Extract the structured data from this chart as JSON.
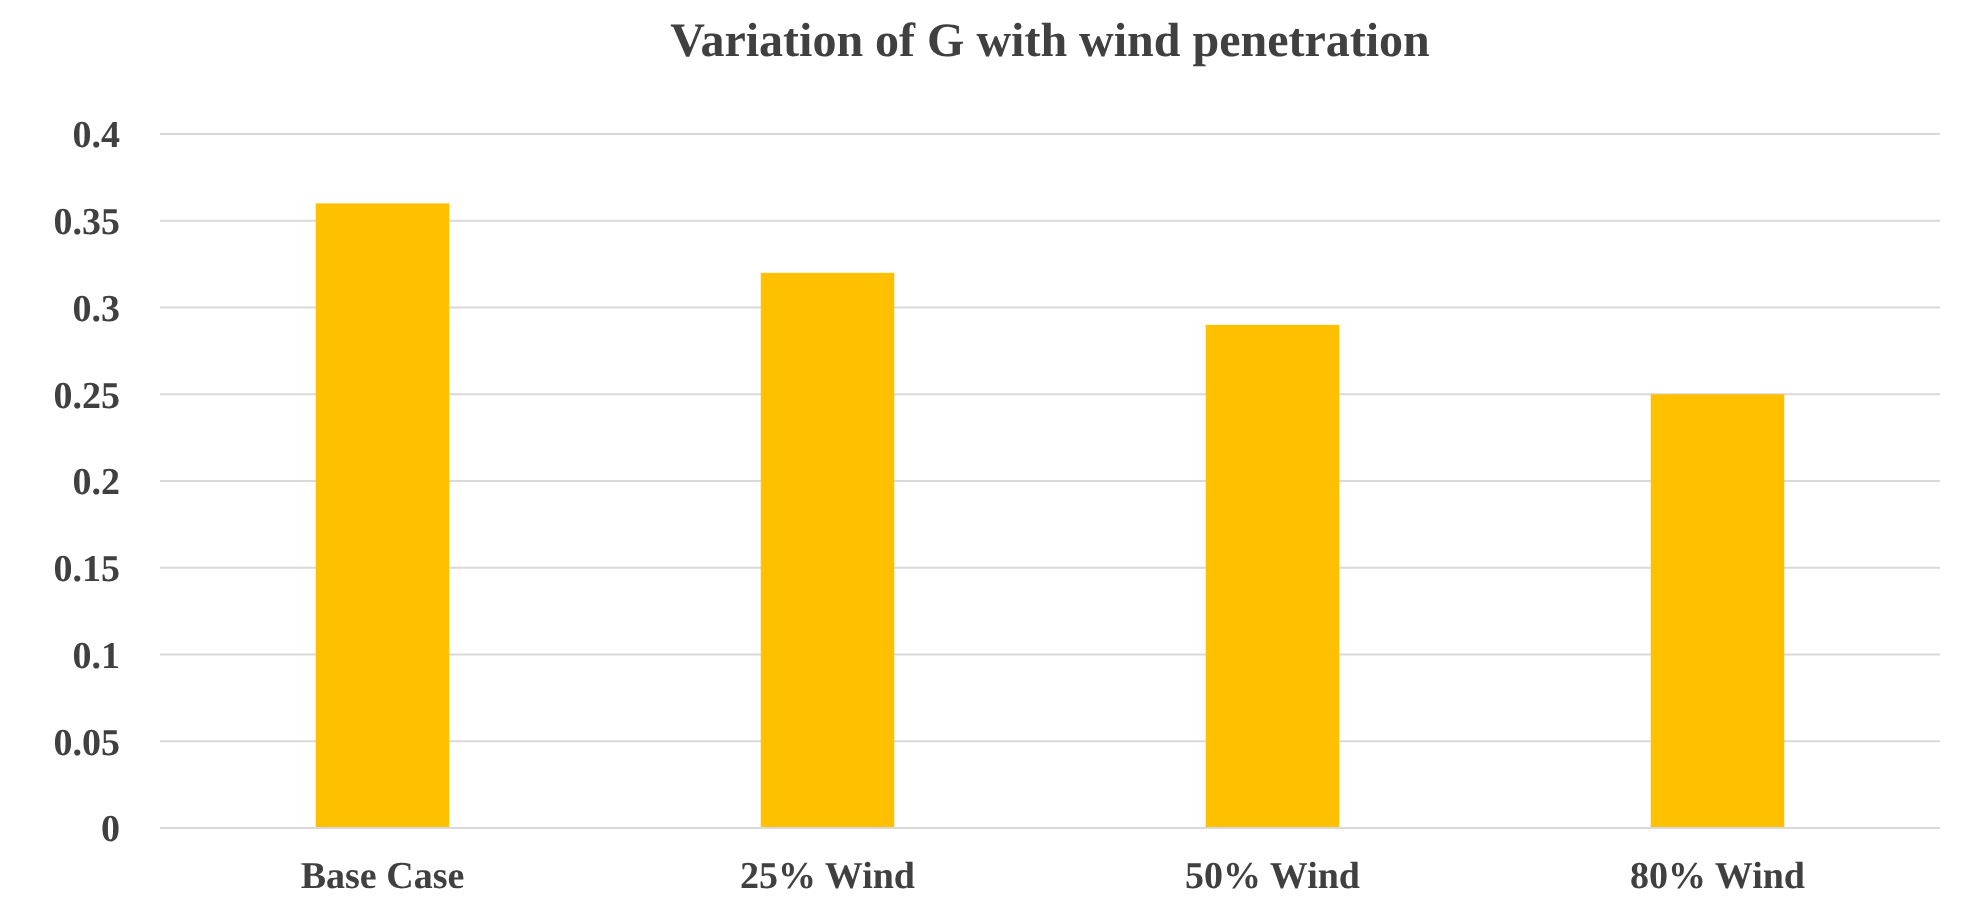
{
  "chart_data": {
    "type": "bar",
    "title": "Variation of G with wind penetration",
    "categories": [
      "Base Case",
      "25% Wind",
      "50% Wind",
      "80% Wind"
    ],
    "values": [
      0.36,
      0.32,
      0.29,
      0.25
    ],
    "color": "#ffc000",
    "ylim": [
      0,
      0.4
    ],
    "yticks": [
      0,
      0.05,
      0.1,
      0.15,
      0.2,
      0.25,
      0.3,
      0.35,
      0.4
    ],
    "grid": "y"
  }
}
